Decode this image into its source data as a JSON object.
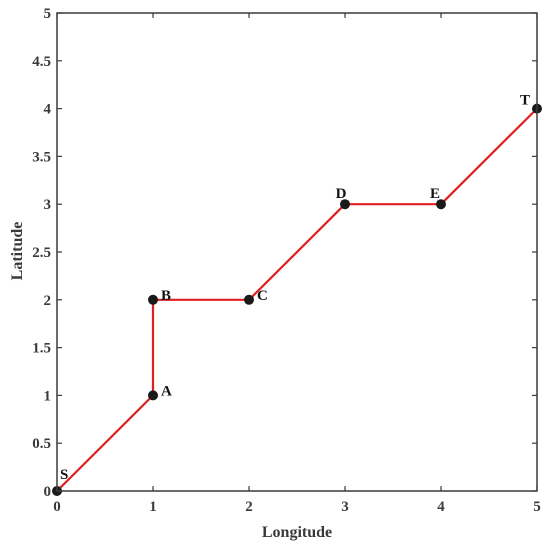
{
  "chart_data": {
    "type": "line",
    "title": "",
    "xlabel": "Longitude",
    "ylabel": "Latitude",
    "xlim": [
      0,
      5
    ],
    "ylim": [
      0,
      5
    ],
    "xticks": [
      0,
      1,
      2,
      3,
      4,
      5
    ],
    "xtick_labels": [
      "0",
      "1",
      "2",
      "3",
      "4",
      "5"
    ],
    "yticks": [
      0,
      0.5,
      1,
      1.5,
      2,
      2.5,
      3,
      3.5,
      4,
      4.5,
      5
    ],
    "ytick_labels": [
      "0",
      "0.5",
      "1",
      "1.5",
      "2",
      "2.5",
      "3",
      "3.5",
      "4",
      "4.5",
      "5"
    ],
    "grid": false,
    "legend": "none",
    "series": [
      {
        "color": "#e02020",
        "marker_color": "#1a1a1a",
        "points": [
          {
            "label": "S",
            "x": 0,
            "y": 0
          },
          {
            "label": "A",
            "x": 1,
            "y": 1
          },
          {
            "label": "B",
            "x": 1,
            "y": 2
          },
          {
            "label": "C",
            "x": 2,
            "y": 2
          },
          {
            "label": "D",
            "x": 3,
            "y": 3
          },
          {
            "label": "E",
            "x": 4,
            "y": 3
          },
          {
            "label": "T",
            "x": 5,
            "y": 4
          }
        ]
      }
    ]
  }
}
